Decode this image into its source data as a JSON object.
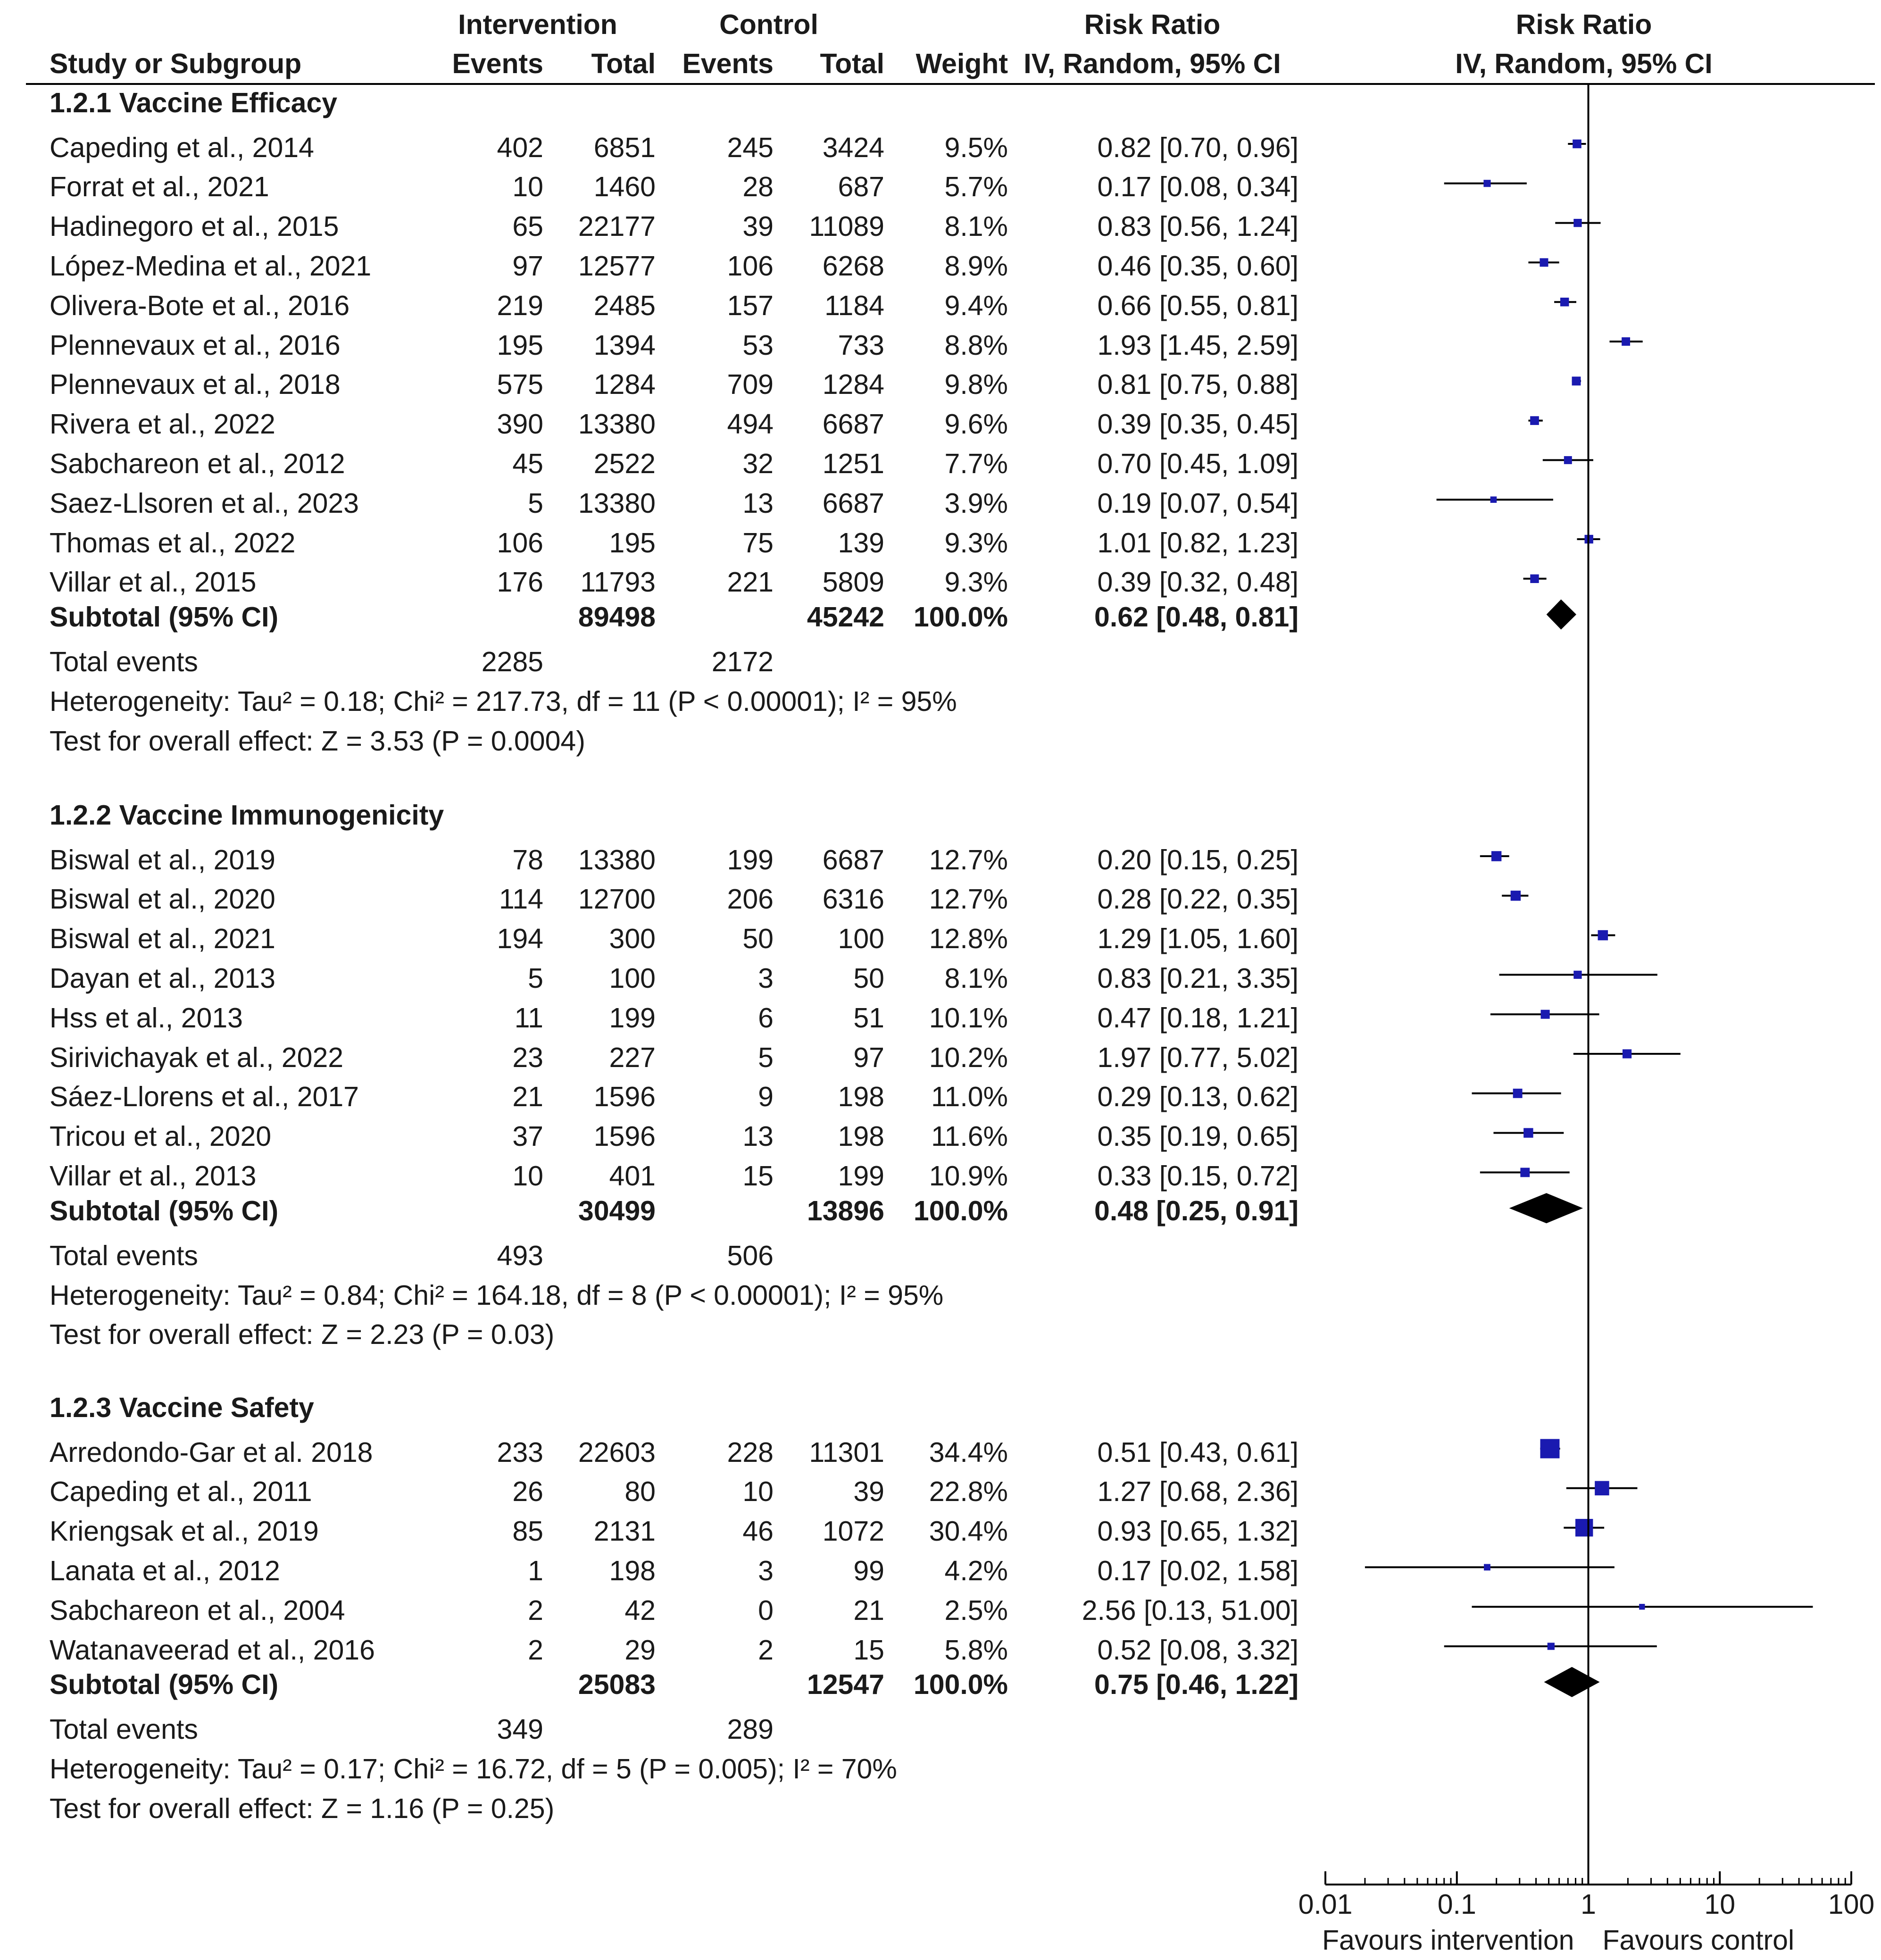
{
  "header": {
    "intervention": "Intervention",
    "control": "Control",
    "risk_ratio": "Risk Ratio",
    "risk_ratio_plot": "Risk Ratio",
    "study": "Study or Subgroup",
    "events": "Events",
    "total": "Total",
    "c_events": "Events",
    "c_total": "Total",
    "weight": "Weight",
    "method": "IV, Random, 95% CI",
    "method_plot": "IV, Random, 95% CI"
  },
  "groups": [
    {
      "title": "1.2.1 Vaccine Efficacy",
      "studies": [
        {
          "name": "Capeding et al., 2014",
          "ie": "402",
          "it": "6851",
          "ce": "245",
          "ct": "3424",
          "w": "9.5%",
          "ci": "0.82 [0.70, 0.96]",
          "rr": 0.82,
          "lo": 0.7,
          "hi": 0.96,
          "wt": 9.5
        },
        {
          "name": "Forrat et al., 2021",
          "ie": "10",
          "it": "1460",
          "ce": "28",
          "ct": "687",
          "w": "5.7%",
          "ci": "0.17 [0.08, 0.34]",
          "rr": 0.17,
          "lo": 0.08,
          "hi": 0.34,
          "wt": 5.7
        },
        {
          "name": "Hadinegoro et al., 2015",
          "ie": "65",
          "it": "22177",
          "ce": "39",
          "ct": "11089",
          "w": "8.1%",
          "ci": "0.83 [0.56, 1.24]",
          "rr": 0.83,
          "lo": 0.56,
          "hi": 1.24,
          "wt": 8.1
        },
        {
          "name": "López-Medina et al., 2021",
          "ie": "97",
          "it": "12577",
          "ce": "106",
          "ct": "6268",
          "w": "8.9%",
          "ci": "0.46 [0.35, 0.60]",
          "rr": 0.46,
          "lo": 0.35,
          "hi": 0.6,
          "wt": 8.9
        },
        {
          "name": "Olivera-Bote et al., 2016",
          "ie": "219",
          "it": "2485",
          "ce": "157",
          "ct": "1184",
          "w": "9.4%",
          "ci": "0.66 [0.55, 0.81]",
          "rr": 0.66,
          "lo": 0.55,
          "hi": 0.81,
          "wt": 9.4
        },
        {
          "name": "Plennevaux et al., 2016",
          "ie": "195",
          "it": "1394",
          "ce": "53",
          "ct": "733",
          "w": "8.8%",
          "ci": "1.93 [1.45, 2.59]",
          "rr": 1.93,
          "lo": 1.45,
          "hi": 2.59,
          "wt": 8.8
        },
        {
          "name": "Plennevaux et al., 2018",
          "ie": "575",
          "it": "1284",
          "ce": "709",
          "ct": "1284",
          "w": "9.8%",
          "ci": "0.81 [0.75, 0.88]",
          "rr": 0.81,
          "lo": 0.75,
          "hi": 0.88,
          "wt": 9.8
        },
        {
          "name": "Rivera et al., 2022",
          "ie": "390",
          "it": "13380",
          "ce": "494",
          "ct": "6687",
          "w": "9.6%",
          "ci": "0.39 [0.35, 0.45]",
          "rr": 0.39,
          "lo": 0.35,
          "hi": 0.45,
          "wt": 9.6
        },
        {
          "name": "Sabchareon et al., 2012",
          "ie": "45",
          "it": "2522",
          "ce": "32",
          "ct": "1251",
          "w": "7.7%",
          "ci": "0.70 [0.45, 1.09]",
          "rr": 0.7,
          "lo": 0.45,
          "hi": 1.09,
          "wt": 7.7
        },
        {
          "name": "Saez-Llsoren et al., 2023",
          "ie": "5",
          "it": "13380",
          "ce": "13",
          "ct": "6687",
          "w": "3.9%",
          "ci": "0.19 [0.07, 0.54]",
          "rr": 0.19,
          "lo": 0.07,
          "hi": 0.54,
          "wt": 3.9
        },
        {
          "name": "Thomas et al., 2022",
          "ie": "106",
          "it": "195",
          "ce": "75",
          "ct": "139",
          "w": "9.3%",
          "ci": "1.01 [0.82, 1.23]",
          "rr": 1.01,
          "lo": 0.82,
          "hi": 1.23,
          "wt": 9.3
        },
        {
          "name": "Villar et al., 2015",
          "ie": "176",
          "it": "11793",
          "ce": "221",
          "ct": "5809",
          "w": "9.3%",
          "ci": "0.39 [0.32, 0.48]",
          "rr": 0.39,
          "lo": 0.32,
          "hi": 0.48,
          "wt": 9.3
        }
      ],
      "subtotal": {
        "label": "Subtotal (95% CI)",
        "it": "89498",
        "ct": "45242",
        "w": "100.0%",
        "ci": "0.62 [0.48, 0.81]",
        "rr": 0.62,
        "lo": 0.48,
        "hi": 0.81
      },
      "total_events": {
        "label": "Total events",
        "ie": "2285",
        "ce": "2172"
      },
      "heterogeneity": "Heterogeneity: Tau² = 0.18; Chi² = 217.73, df = 11 (P < 0.00001); I² = 95%",
      "overall": "Test for overall effect: Z = 3.53 (P = 0.0004)"
    },
    {
      "title": "1.2.2 Vaccine Immunogenicity",
      "studies": [
        {
          "name": "Biswal et al., 2019",
          "ie": "78",
          "it": "13380",
          "ce": "199",
          "ct": "6687",
          "w": "12.7%",
          "ci": "0.20 [0.15, 0.25]",
          "rr": 0.2,
          "lo": 0.15,
          "hi": 0.25,
          "wt": 12.7
        },
        {
          "name": "Biswal et al., 2020",
          "ie": "114",
          "it": "12700",
          "ce": "206",
          "ct": "6316",
          "w": "12.7%",
          "ci": "0.28 [0.22, 0.35]",
          "rr": 0.28,
          "lo": 0.22,
          "hi": 0.35,
          "wt": 12.7
        },
        {
          "name": "Biswal et al., 2021",
          "ie": "194",
          "it": "300",
          "ce": "50",
          "ct": "100",
          "w": "12.8%",
          "ci": "1.29 [1.05, 1.60]",
          "rr": 1.29,
          "lo": 1.05,
          "hi": 1.6,
          "wt": 12.8
        },
        {
          "name": "Dayan et al., 2013",
          "ie": "5",
          "it": "100",
          "ce": "3",
          "ct": "50",
          "w": "8.1%",
          "ci": "0.83 [0.21, 3.35]",
          "rr": 0.83,
          "lo": 0.21,
          "hi": 3.35,
          "wt": 8.1
        },
        {
          "name": "Hss et al., 2013",
          "ie": "11",
          "it": "199",
          "ce": "6",
          "ct": "51",
          "w": "10.1%",
          "ci": "0.47 [0.18, 1.21]",
          "rr": 0.47,
          "lo": 0.18,
          "hi": 1.21,
          "wt": 10.1
        },
        {
          "name": "Sirivichayak et al., 2022",
          "ie": "23",
          "it": "227",
          "ce": "5",
          "ct": "97",
          "w": "10.2%",
          "ci": "1.97 [0.77, 5.02]",
          "rr": 1.97,
          "lo": 0.77,
          "hi": 5.02,
          "wt": 10.2
        },
        {
          "name": "Sáez-Llorens et al., 2017",
          "ie": "21",
          "it": "1596",
          "ce": "9",
          "ct": "198",
          "w": "11.0%",
          "ci": "0.29 [0.13, 0.62]",
          "rr": 0.29,
          "lo": 0.13,
          "hi": 0.62,
          "wt": 11.0
        },
        {
          "name": "Tricou et al., 2020",
          "ie": "37",
          "it": "1596",
          "ce": "13",
          "ct": "198",
          "w": "11.6%",
          "ci": "0.35 [0.19, 0.65]",
          "rr": 0.35,
          "lo": 0.19,
          "hi": 0.65,
          "wt": 11.6
        },
        {
          "name": "Villar et al., 2013",
          "ie": "10",
          "it": "401",
          "ce": "15",
          "ct": "199",
          "w": "10.9%",
          "ci": "0.33 [0.15, 0.72]",
          "rr": 0.33,
          "lo": 0.15,
          "hi": 0.72,
          "wt": 10.9
        }
      ],
      "subtotal": {
        "label": "Subtotal (95% CI)",
        "it": "30499",
        "ct": "13896",
        "w": "100.0%",
        "ci": "0.48 [0.25, 0.91]",
        "rr": 0.48,
        "lo": 0.25,
        "hi": 0.91
      },
      "total_events": {
        "label": "Total events",
        "ie": "493",
        "ce": "506"
      },
      "heterogeneity": "Heterogeneity: Tau² = 0.84; Chi² = 164.18, df = 8 (P < 0.00001); I² = 95%",
      "overall": "Test for overall effect: Z = 2.23 (P = 0.03)"
    },
    {
      "title": "1.2.3 Vaccine Safety",
      "studies": [
        {
          "name": "Arredondo-Gar et al. 2018",
          "ie": "233",
          "it": "22603",
          "ce": "228",
          "ct": "11301",
          "w": "34.4%",
          "ci": "0.51 [0.43, 0.61]",
          "rr": 0.51,
          "lo": 0.43,
          "hi": 0.61,
          "wt": 34.4
        },
        {
          "name": "Capeding et al., 2011",
          "ie": "26",
          "it": "80",
          "ce": "10",
          "ct": "39",
          "w": "22.8%",
          "ci": "1.27 [0.68, 2.36]",
          "rr": 1.27,
          "lo": 0.68,
          "hi": 2.36,
          "wt": 22.8
        },
        {
          "name": "Kriengsak et al., 2019",
          "ie": "85",
          "it": "2131",
          "ce": "46",
          "ct": "1072",
          "w": "30.4%",
          "ci": "0.93 [0.65, 1.32]",
          "rr": 0.93,
          "lo": 0.65,
          "hi": 1.32,
          "wt": 30.4
        },
        {
          "name": "Lanata et al., 2012",
          "ie": "1",
          "it": "198",
          "ce": "3",
          "ct": "99",
          "w": "4.2%",
          "ci": "0.17 [0.02, 1.58]",
          "rr": 0.17,
          "lo": 0.02,
          "hi": 1.58,
          "wt": 4.2
        },
        {
          "name": "Sabchareon et al., 2004",
          "ie": "2",
          "it": "42",
          "ce": "0",
          "ct": "21",
          "w": "2.5%",
          "ci": "2.56 [0.13, 51.00]",
          "rr": 2.56,
          "lo": 0.13,
          "hi": 51.0,
          "wt": 2.5
        },
        {
          "name": "Watanaveerad et al., 2016",
          "ie": "2",
          "it": "29",
          "ce": "2",
          "ct": "15",
          "w": "5.8%",
          "ci": "0.52 [0.08, 3.32]",
          "rr": 0.52,
          "lo": 0.08,
          "hi": 3.32,
          "wt": 5.8
        }
      ],
      "subtotal": {
        "label": "Subtotal (95% CI)",
        "it": "25083",
        "ct": "12547",
        "w": "100.0%",
        "ci": "0.75 [0.46, 1.22]",
        "rr": 0.75,
        "lo": 0.46,
        "hi": 1.22
      },
      "total_events": {
        "label": "Total events",
        "ie": "349",
        "ce": "289"
      },
      "heterogeneity": "Heterogeneity: Tau² = 0.17; Chi² = 16.72, df = 5 (P = 0.005); I² = 70%",
      "overall": "Test for overall effect: Z = 1.16 (P = 0.25)"
    }
  ],
  "chart_data": {
    "type": "forest",
    "scale": "log",
    "xlim": [
      0.01,
      100
    ],
    "ticks": [
      0.01,
      0.1,
      1,
      10,
      100
    ],
    "tick_labels": [
      "0.01",
      "0.1",
      "1",
      "10",
      "100"
    ],
    "null_line": 1,
    "footer_left": "Favours intervention",
    "footer_right": "Favours control"
  },
  "colors": {
    "marker": "#1a1ab0",
    "diamond": "#000000",
    "text": "#1a1a1a"
  }
}
